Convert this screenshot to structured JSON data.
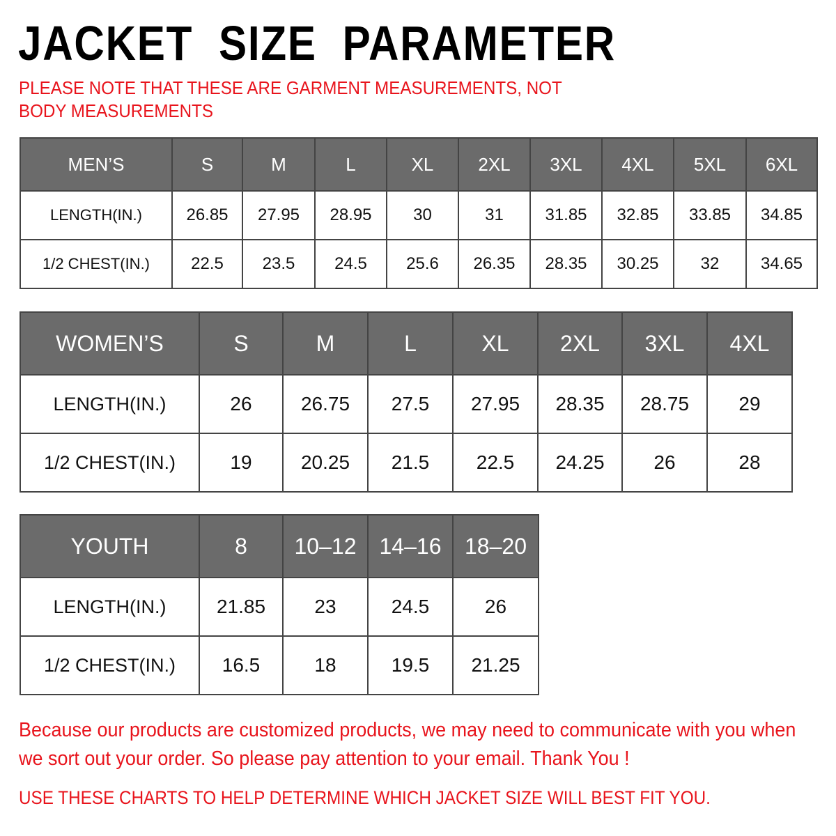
{
  "title": "JACKET  SIZE  PARAMETER",
  "note": "PLEASE NOTE THAT THESE ARE GARMENT MEASUREMENTS, NOT BODY MEASUREMENTS",
  "tables": {
    "men": {
      "headers": [
        "MEN’S",
        "S",
        "M",
        "L",
        "XL",
        "2XL",
        "3XL",
        "4XL",
        "5XL",
        "6XL"
      ],
      "rows": [
        [
          "LENGTH(IN.)",
          "26.85",
          "27.95",
          "28.95",
          "30",
          "31",
          "31.85",
          "32.85",
          "33.85",
          "34.85"
        ],
        [
          "1/2 CHEST(IN.)",
          "22.5",
          "23.5",
          "24.5",
          "25.6",
          "26.35",
          "28.35",
          "30.25",
          "32",
          "34.65"
        ]
      ]
    },
    "women": {
      "headers": [
        "WOMEN’S",
        "S",
        "M",
        "L",
        "XL",
        "2XL",
        "3XL",
        "4XL"
      ],
      "rows": [
        [
          "LENGTH(IN.)",
          "26",
          "26.75",
          "27.5",
          "27.95",
          "28.35",
          "28.75",
          "29"
        ],
        [
          "1/2 CHEST(IN.)",
          "19",
          "20.25",
          "21.5",
          "22.5",
          "24.25",
          "26",
          "28"
        ]
      ]
    },
    "youth": {
      "headers": [
        "YOUTH",
        "8",
        "10–12",
        "14–16",
        "18–20"
      ],
      "rows": [
        [
          "LENGTH(IN.)",
          "21.85",
          "23",
          "24.5",
          "26"
        ],
        [
          "1/2 CHEST(IN.)",
          "16.5",
          "18",
          "19.5",
          "21.25"
        ]
      ]
    }
  },
  "message": "Because our products are customized products, we may need to communicate with you when we sort out your order. So please pay attention to your email. Thank You !",
  "footer": "USE THESE CHARTS TO HELP DETERMINE WHICH JACKET SIZE WILL BEST FIT YOU.",
  "colors": {
    "header_bg": "#6b6b6b",
    "accent_red": "#e8141c"
  }
}
